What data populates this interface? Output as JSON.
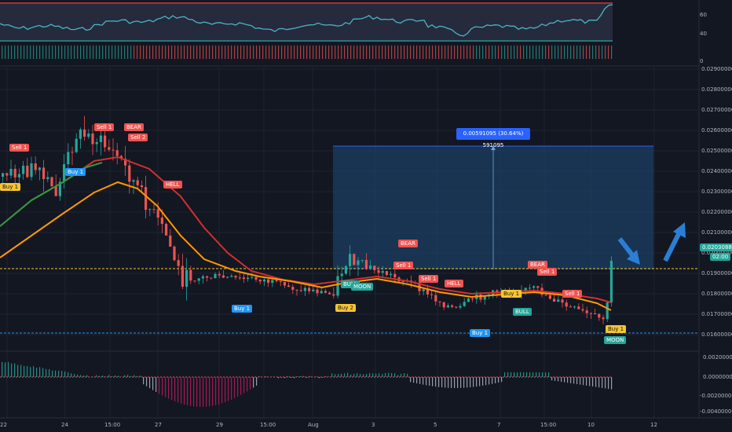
{
  "rsi": {
    "ticks": [
      "60",
      "40",
      "0"
    ],
    "colors": {
      "line": "#48b5c4",
      "upper": "#e53935",
      "lower": "#26a69a"
    }
  },
  "price_axis": {
    "ticks": [
      "0.02900000",
      "0.02800000",
      "0.02700000",
      "0.02600000",
      "0.02500000",
      "0.02400000",
      "0.02300000",
      "0.02200000",
      "0.02100000",
      "0.02000000",
      "0.01900000",
      "0.01800000",
      "0.01700000",
      "0.01600000"
    ],
    "current_price": "0.02030886",
    "current_time": "02:00"
  },
  "macd_axis": {
    "ticks": [
      "0.00200000",
      "0.00000000",
      "-0.00200000",
      "-0.00400000"
    ]
  },
  "time_axis": {
    "ticks": [
      "22",
      "24",
      "15:00",
      "27",
      "29",
      "15:00",
      "Aug",
      "3",
      "5",
      "7",
      "15:00",
      "10",
      "12"
    ]
  },
  "range_tool": {
    "label": "0.00591095 (30.64%) 591095"
  },
  "signals": [
    {
      "text": "Sell 1",
      "kind": "sell"
    },
    {
      "text": "Buy 1",
      "kind": "yellow"
    },
    {
      "text": "Buy 1",
      "kind": "buy"
    },
    {
      "text": "Sell 1",
      "kind": "sell"
    },
    {
      "text": "BEAR",
      "kind": "sell"
    },
    {
      "text": "Sell 2",
      "kind": "sell"
    },
    {
      "text": "HELL",
      "kind": "sell"
    },
    {
      "text": "Buy 1",
      "kind": "buy"
    },
    {
      "text": "BULL",
      "kind": "bull"
    },
    {
      "text": "MOON",
      "kind": "bull"
    },
    {
      "text": "Buy 2",
      "kind": "yellow"
    },
    {
      "text": "BEAR",
      "kind": "sell"
    },
    {
      "text": "Sell 1",
      "kind": "sell"
    },
    {
      "text": "Sell 1",
      "kind": "sell"
    },
    {
      "text": "HELL",
      "kind": "sell"
    },
    {
      "text": "BEAR",
      "kind": "sell"
    },
    {
      "text": "Sell 1",
      "kind": "sell"
    },
    {
      "text": "Buy 1",
      "kind": "yellow"
    },
    {
      "text": "Sell 1",
      "kind": "sell"
    },
    {
      "text": "BULL",
      "kind": "bull"
    },
    {
      "text": "Buy 1",
      "kind": "buy"
    },
    {
      "text": "Buy 1",
      "kind": "yellow"
    },
    {
      "text": "MOON",
      "kind": "bull"
    }
  ],
  "colors": {
    "background": "#131722",
    "up": "#26a69a",
    "down": "#ef5350",
    "ema_fast": "#2e9c3e",
    "ema_slow": "#d22f2f",
    "ema_orange": "#ff9800",
    "hline_yellow": "#f7c531",
    "hline_blue": "#2196f3",
    "range_fill": "#1e4d78",
    "arrow": "#2a7fd4"
  }
}
